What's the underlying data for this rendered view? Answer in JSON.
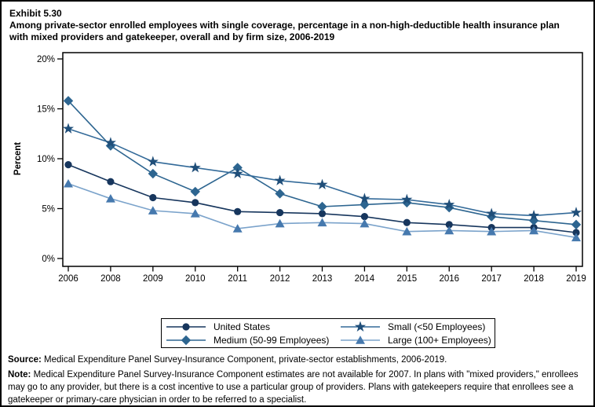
{
  "header": {
    "exhibit": "Exhibit 5.30",
    "title": "Among private-sector enrolled employees with single coverage, percentage in a non-high-deductible health insurance plan with mixed providers and gatekeeper, overall and by firm size, 2006-2019"
  },
  "chart_data": {
    "type": "line",
    "title": "Among private-sector enrolled employees with single coverage, percentage in a non-high-deductible health insurance plan with mixed providers and gatekeeper, overall and by firm size, 2006-2019",
    "xlabel": "",
    "ylabel": "Percent",
    "ylim": [
      0,
      20
    ],
    "grid": false,
    "legend_position": "bottom",
    "yticks": [
      {
        "v": 0,
        "label": "0%"
      },
      {
        "v": 5,
        "label": "5%"
      },
      {
        "v": 10,
        "label": "10%"
      },
      {
        "v": 15,
        "label": "15%"
      },
      {
        "v": 20,
        "label": "20%"
      }
    ],
    "categories": [
      "2006",
      "2008",
      "2009",
      "2010",
      "2011",
      "2012",
      "2013",
      "2014",
      "2015",
      "2016",
      "2017",
      "2018",
      "2019"
    ],
    "series": [
      {
        "name": "United States",
        "marker": "circle",
        "color": "#17365d",
        "line_color": "#17365d",
        "values": [
          9.4,
          7.7,
          6.1,
          5.6,
          4.7,
          4.6,
          4.5,
          4.2,
          3.6,
          3.4,
          3.1,
          3.1,
          2.6
        ]
      },
      {
        "name": "Medium (50-99 Employees)",
        "marker": "diamond",
        "color": "#2d6590",
        "line_color": "#2d6590",
        "values": [
          15.8,
          11.3,
          8.5,
          6.7,
          9.1,
          6.5,
          5.2,
          5.4,
          5.6,
          5.1,
          4.2,
          3.8,
          3.4
        ]
      },
      {
        "name": "Small (<50 Employees)",
        "marker": "star",
        "color": "#1f4e79",
        "line_color": "#336a99",
        "values": [
          13.0,
          11.6,
          9.7,
          9.1,
          8.5,
          7.8,
          7.4,
          6.0,
          5.9,
          5.4,
          4.5,
          4.3,
          4.6
        ]
      },
      {
        "name": "Large (100+ Employees)",
        "marker": "triangle",
        "color": "#4679ae",
        "line_color": "#7ba3cb",
        "values": [
          7.5,
          6.0,
          4.8,
          4.5,
          3.0,
          3.5,
          3.6,
          3.5,
          2.7,
          2.8,
          2.7,
          2.8,
          2.1
        ]
      }
    ]
  },
  "footer": {
    "source_label": "Source:",
    "source_text": " Medical Expenditure Panel Survey-Insurance Component, private-sector establishments, 2006-2019.",
    "note_label": "Note:",
    "note_text": " Medical Expenditure Panel Survey-Insurance Component estimates are not available for 2007. In plans with \"mixed providers,\" enrollees may go to any provider, but there is a cost incentive to use a particular group of providers. Plans with gatekeepers require that enrollees see a gatekeeper or primary-care physician in order to be referred to a specialist."
  }
}
